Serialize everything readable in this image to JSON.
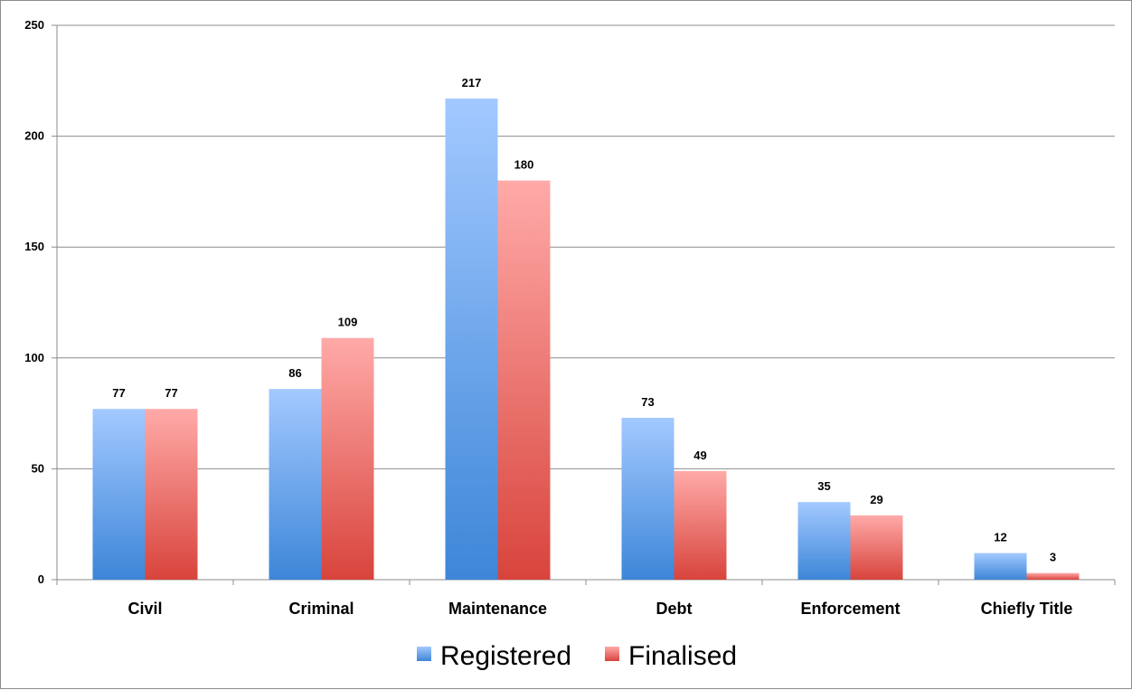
{
  "chart_data": {
    "type": "bar",
    "categories": [
      "Civil",
      "Criminal",
      "Maintenance",
      "Debt",
      "Enforcement",
      "Chiefly Title"
    ],
    "series": [
      {
        "name": "Registered",
        "values": [
          77,
          86,
          217,
          73,
          35,
          12
        ]
      },
      {
        "name": "Finalised",
        "values": [
          77,
          109,
          180,
          49,
          29,
          3
        ]
      }
    ],
    "ylim": [
      0,
      250
    ],
    "yticks": [
      0,
      50,
      100,
      150,
      200,
      250
    ],
    "grid": true,
    "legend_position": "bottom",
    "colors": {
      "Registered": {
        "top": "#a3c9ff",
        "bottom": "#3d86d8"
      },
      "Finalised": {
        "top": "#ffaaa8",
        "bottom": "#d8443c"
      }
    }
  }
}
